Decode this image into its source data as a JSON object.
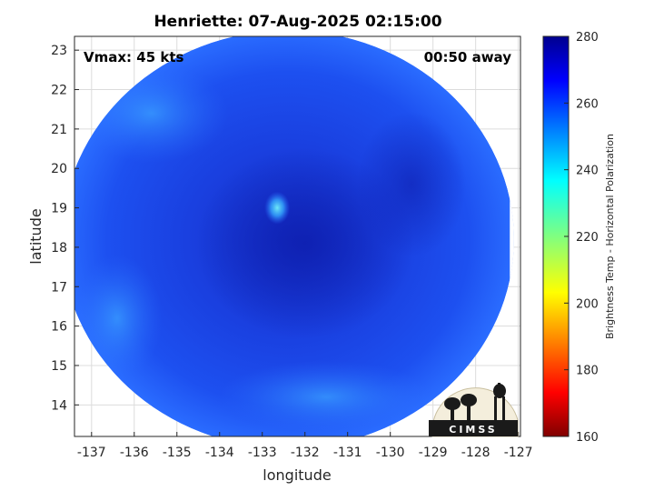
{
  "chart_data": {
    "type": "heatmap",
    "title": "Henriette: 07-Aug-2025 02:15:00",
    "xlabel": "longitude",
    "ylabel": "latitude",
    "xlim": [
      -137.4,
      -126.95
    ],
    "ylim": [
      13.2,
      23.35
    ],
    "x_ticks": [
      -137,
      -136,
      -135,
      -134,
      -133,
      -132,
      -131,
      -130,
      -129,
      -128,
      -127
    ],
    "y_ticks": [
      14,
      15,
      16,
      17,
      18,
      19,
      20,
      21,
      22,
      23
    ],
    "grid": true,
    "annotations": {
      "vmax": "Vmax: 45 kts",
      "time_offset": "00:50 away"
    },
    "colorbar": {
      "label": "Brightness Temp - Horizontal Polarization",
      "range": [
        160,
        280
      ],
      "ticks": [
        160,
        180,
        200,
        220,
        240,
        260,
        280
      ],
      "colormap": "jet",
      "placement": "right"
    },
    "swath": {
      "center": [
        -132.4,
        18.2
      ],
      "radius_deg": 5.3,
      "east_edge_lon": -127.2,
      "storm_center": [
        -132.0,
        18.1
      ],
      "eye_highlight": [
        -132.65,
        19.0
      ],
      "background_tb": 262,
      "inner_core_tb": 270,
      "warm_outer_band_tb": 252
    },
    "logo_text": "CIMSS",
    "colors": {
      "deep_blue": "#0b1aa8",
      "mid_blue": "#1a44e8",
      "light_blue": "#2f86ff",
      "cyan": "#58d8f4"
    }
  }
}
